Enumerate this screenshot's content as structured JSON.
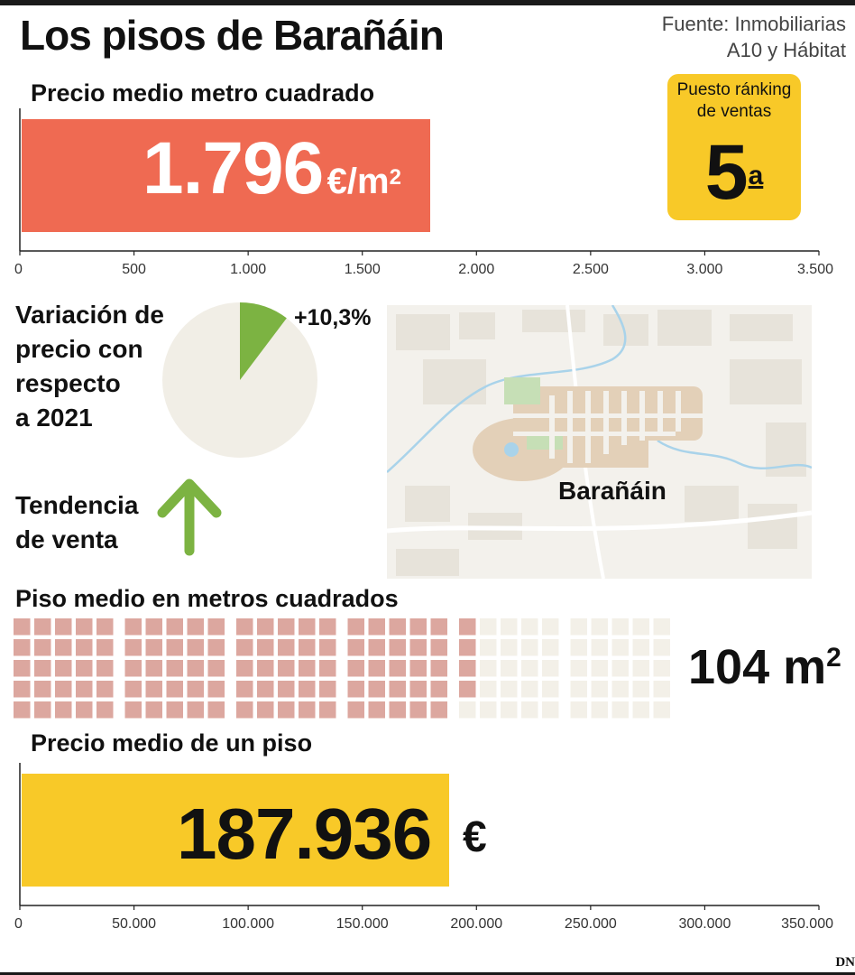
{
  "title": "Los pisos de Barañáin",
  "source": [
    "Fuente: Inmobiliarias",
    "A10 y Hábitat"
  ],
  "price_m2": {
    "label": "Precio medio metro cuadrado",
    "value_text": "1.796",
    "unit_text": "€/m",
    "unit_sup": "2"
  },
  "ranking": {
    "title": "Puesto ránking de ventas",
    "value": "5",
    "sup": "a"
  },
  "variation": {
    "label_lines": [
      "Variación de",
      "precio con",
      "respecto",
      "a 2021"
    ],
    "value_text": "+10,3%"
  },
  "trend": {
    "label_lines": [
      "Tendencia",
      "de venta"
    ],
    "icon": "up-arrow-icon"
  },
  "map": {
    "label": "Barañáin"
  },
  "area": {
    "label": "Piso medio en metros cuadrados",
    "value_text": "104 m",
    "value_sup": "2"
  },
  "price_flat": {
    "label": "Precio medio de un piso",
    "value_text": "187.936",
    "unit_text": "€"
  },
  "logo": "DN",
  "colors": {
    "red_bar": "#ef6a52",
    "yellow": "#f8c928",
    "green": "#7cb342",
    "pie_bg": "#f1eee6",
    "square_filled": "#dca79f",
    "square_empty": "#f3f0e8",
    "map_bg": "#f3f1ec"
  },
  "chart_data": [
    {
      "type": "bar",
      "title": "Precio medio metro cuadrado",
      "categories": [
        "Barañáin"
      ],
      "values": [
        1796
      ],
      "xlim": [
        0,
        3500
      ],
      "ticks": [
        0,
        500,
        1000,
        1500,
        2000,
        2500,
        3000,
        3500
      ],
      "tick_labels": [
        "0",
        "500",
        "1.000",
        "1.500",
        "2.000",
        "2.500",
        "3.000",
        "3.500"
      ]
    },
    {
      "type": "pie",
      "title": "Variación de precio con respecto a 2021",
      "values": [
        10.3
      ],
      "labels": [
        "+10,3%"
      ]
    },
    {
      "type": "waffle",
      "title": "Piso medio en metros cuadrados",
      "filled": 104,
      "total": 150
    },
    {
      "type": "bar",
      "title": "Precio medio de un piso",
      "categories": [
        "Barañáin"
      ],
      "values": [
        187936
      ],
      "xlim": [
        0,
        350000
      ],
      "ticks": [
        0,
        50000,
        100000,
        150000,
        200000,
        250000,
        300000,
        350000
      ],
      "tick_labels": [
        "0",
        "50.000",
        "100.000",
        "150.000",
        "200.000",
        "250.000",
        "300.000",
        "350.000"
      ]
    }
  ]
}
